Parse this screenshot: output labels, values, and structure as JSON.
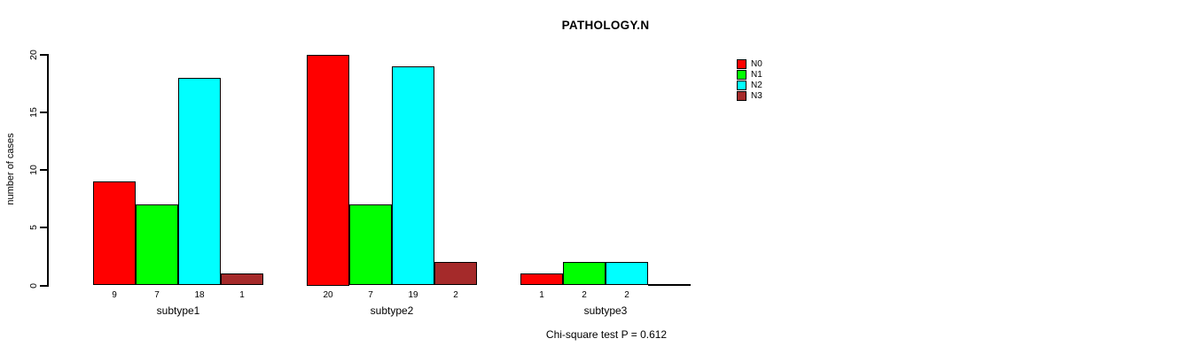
{
  "chart_data": {
    "type": "bar",
    "title": "PATHOLOGY.N",
    "xlabel": "",
    "ylabel": "number of cases",
    "ylim": [
      0,
      20
    ],
    "yticks": [
      "0",
      "5",
      "10",
      "15",
      "20"
    ],
    "grid": false,
    "legend_position": "right",
    "categories": [
      "subtype1",
      "subtype2",
      "subtype3"
    ],
    "series": [
      {
        "name": "N0",
        "color": "#ff0000",
        "values": [
          9,
          20,
          1
        ]
      },
      {
        "name": "N1",
        "color": "#00ff00",
        "values": [
          7,
          7,
          2
        ]
      },
      {
        "name": "N2",
        "color": "#00ffff",
        "values": [
          18,
          19,
          2
        ]
      },
      {
        "name": "N3",
        "color": "#a52a2a",
        "values": [
          1,
          2,
          0
        ]
      }
    ],
    "bar_labels": [
      [
        "9",
        "7",
        "18",
        "1"
      ],
      [
        "20",
        "7",
        "19",
        "2"
      ],
      [
        "1",
        "2",
        "2",
        ""
      ]
    ],
    "annotation": "Chi-square test P = 0.612",
    "colors": {
      "foreground": "#000000",
      "background": "#ffffff"
    }
  }
}
